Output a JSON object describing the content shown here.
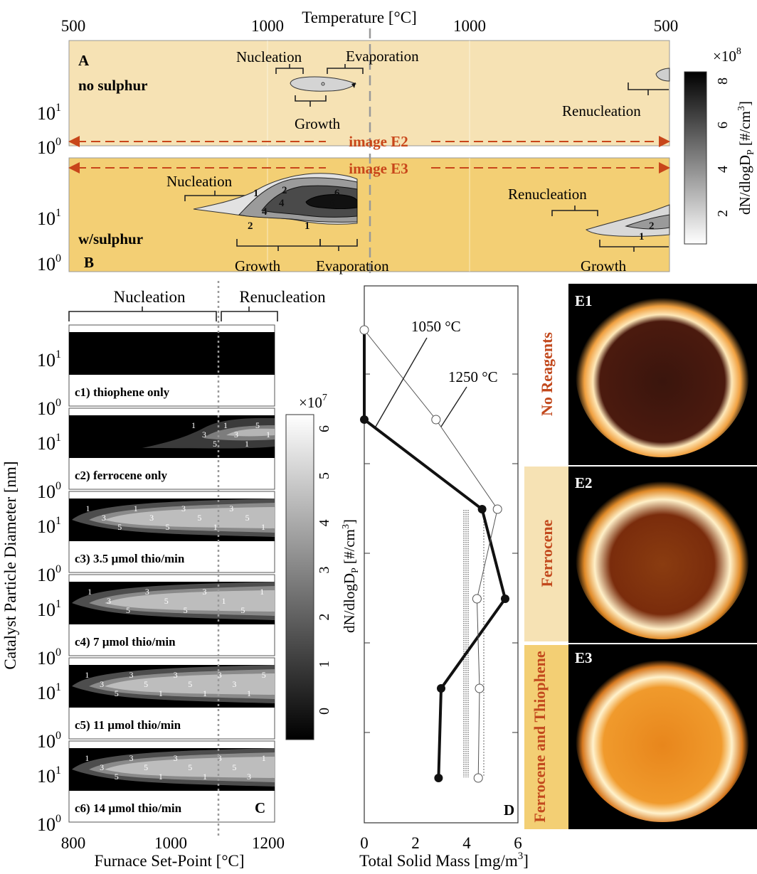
{
  "top": {
    "axis_title": "Temperature [°C]",
    "ticks": [
      "500",
      "1000",
      "1000",
      "500"
    ],
    "image_e2": "image E2",
    "image_e3": "image E3",
    "colorbar": {
      "multiplier": "×10",
      "multiplier_exp": "8",
      "ticks": [
        "2",
        "4",
        "6",
        "8"
      ],
      "label": "dN/dlogD",
      "label_sub": "P",
      "label_tail": " [#/cm",
      "label_sup": "3",
      "label_end": "]"
    },
    "panel_a": {
      "letter": "A",
      "condition": "no sulphur",
      "labels": {
        "nucleation": "Nucleation",
        "evaporation": "Evaporation",
        "growth": "Growth",
        "renucleation": "Renucleation"
      },
      "yticks": [
        {
          "base": "10",
          "exp": "1"
        },
        {
          "base": "10",
          "exp": "0"
        }
      ]
    },
    "panel_b": {
      "letter": "B",
      "condition": "w/sulphur",
      "labels": {
        "nucleation": "Nucleation",
        "growth": "Growth",
        "evaporation": "Evaporation",
        "renucleation": "Renucleation",
        "growth2": "Growth"
      },
      "contour_labels": [
        "1",
        "2",
        "4",
        "4",
        "2",
        "6",
        "6",
        "2",
        "1",
        "2"
      ],
      "yticks": [
        {
          "base": "10",
          "exp": "1"
        },
        {
          "base": "10",
          "exp": "0"
        }
      ]
    }
  },
  "panel_c": {
    "letter": "C",
    "region_left": "Nucleation",
    "region_right": "Renucleation",
    "ylabel": "Catalyst Particle Diameter [nm]",
    "xlabel": "Furnace Set-Point [°C]",
    "xticks": [
      "800",
      "1000",
      "1200"
    ],
    "ytick": {
      "base": "10",
      "exp1": "1",
      "exp0": "0"
    },
    "subplots": [
      {
        "label": "c1) thiophene only",
        "contour_labels": []
      },
      {
        "label": "c2) ferrocene only",
        "contour_labels": [
          "1",
          "3",
          "5",
          "1",
          "3",
          "1",
          "5",
          "1"
        ]
      },
      {
        "label": "c3) 3.5 µmol thio/min",
        "contour_labels": [
          "1",
          "3",
          "5",
          "1",
          "3",
          "5",
          "3",
          "5",
          "1",
          "3",
          "5",
          "1"
        ]
      },
      {
        "label": "c4) 7 µmol thio/min",
        "contour_labels": [
          "1",
          "3",
          "5",
          "3",
          "5",
          "5",
          "3",
          "1",
          "5",
          "1"
        ]
      },
      {
        "label": "c5) 11 µmol thio/min",
        "contour_labels": [
          "1",
          "3",
          "5",
          "3",
          "5",
          "1",
          "3",
          "5",
          "1",
          "3",
          "3",
          "1",
          "5"
        ]
      },
      {
        "label": "c6) 14 µmol thio/min",
        "contour_labels": [
          "1",
          "3",
          "5",
          "3",
          "5",
          "1",
          "3",
          "5",
          "1",
          "3",
          "5",
          "3",
          "1"
        ]
      }
    ],
    "colorbar": {
      "multiplier": "×10",
      "multiplier_exp": "7",
      "ticks": [
        "0",
        "1",
        "2",
        "3",
        "4",
        "5",
        "6"
      ],
      "label": "dN/dlogD",
      "label_sub": "P",
      "label_tail": " [#/cm",
      "label_sup": "3",
      "label_end": "]"
    }
  },
  "chart_data": {
    "type": "line",
    "panel": "D",
    "xlabel": "Total Solid Mass [mg/m³]",
    "xlabel_parts": {
      "main": "Total Solid Mass [mg/m",
      "sup": "3",
      "end": "]"
    },
    "xticks": [
      "0",
      "2",
      "4",
      "6"
    ],
    "xlim": [
      0,
      6
    ],
    "series": [
      {
        "name": "1050 °C",
        "values": [
          0,
          0,
          4.6,
          5.5,
          3.0,
          2.9
        ]
      },
      {
        "name": "1250 °C",
        "values": [
          0,
          2.8,
          5.2,
          4.4,
          4.5,
          4.45
        ]
      }
    ],
    "rows": [
      "c1",
      "c2",
      "c3",
      "c4",
      "c5",
      "c6"
    ]
  },
  "panel_e": {
    "images": [
      {
        "tag": "E1",
        "side_label": "No Reagents"
      },
      {
        "tag": "E2",
        "side_label": "Ferrocene"
      },
      {
        "tag": "E3",
        "side_label": "Ferrocene and Thiophene"
      }
    ],
    "colors": {
      "label_text": "#c2491d",
      "tan": "#f6e2b4",
      "gold": "#f3cf74"
    }
  }
}
